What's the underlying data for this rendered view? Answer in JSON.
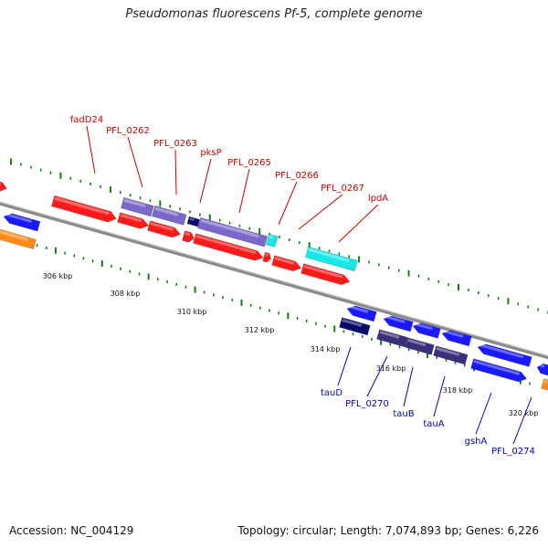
{
  "title": "Pseudomonas fluorescens Pf-5, complete genome",
  "footer": {
    "accession": "Accession: NC_004129",
    "summary": "Topology: circular; Length: 7,074,893 bp; Genes: 6,226"
  },
  "colors": {
    "backbone": "#888888",
    "forward_gene": "#ff1a1a",
    "reverse_gene": "#1a1aff",
    "operon_purple": "#7b68c8",
    "operon_dark": "#3a2f7a",
    "dark_navy": "#0a0a6e",
    "cyan": "#19e6e6",
    "orange": "#ff8c1a",
    "tick": "#1a7a1a",
    "label_top": "#cc0000",
    "label_bottom": "#0000bb"
  },
  "scale_labels": [
    "306 kbp",
    "308 kbp",
    "310 kbp",
    "312 kbp",
    "314 kbp",
    "316 kbp",
    "318 kbp",
    "320 kbp"
  ],
  "top_labels": [
    "fadD24",
    "PFL_0262",
    "PFL_0263",
    "pksP",
    "PFL_0265",
    "PFL_0266",
    "PFL_0267",
    "lpdA"
  ],
  "bottom_labels": [
    "tauD",
    "PFL_0270",
    "tauB",
    "tauA",
    "gshA",
    "PFL_0274"
  ]
}
